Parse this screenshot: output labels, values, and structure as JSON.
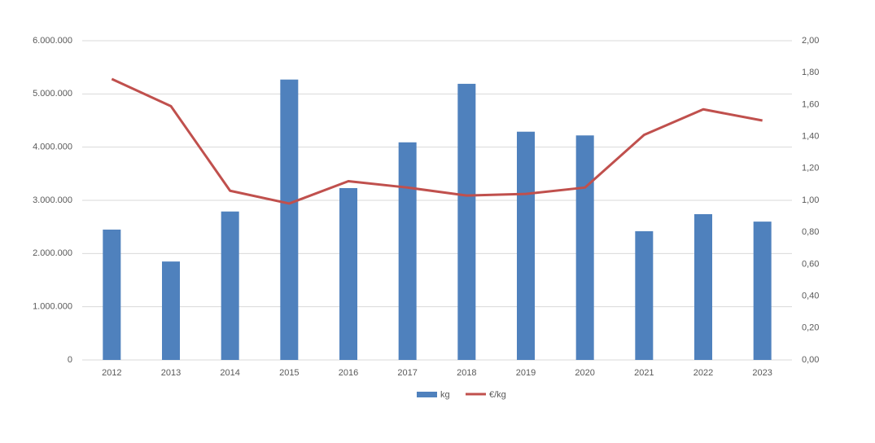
{
  "chart_data": {
    "type": "bar_line",
    "categories": [
      "2012",
      "2013",
      "2014",
      "2015",
      "2016",
      "2017",
      "2018",
      "2019",
      "2020",
      "2021",
      "2022",
      "2023"
    ],
    "series": [
      {
        "name": "kg",
        "type": "bar",
        "color": "#4f81bd",
        "values": [
          2450000,
          1850000,
          2790000,
          5270000,
          3230000,
          4090000,
          5190000,
          4290000,
          4220000,
          2420000,
          2740000,
          2600000
        ]
      },
      {
        "name": "€/kg",
        "type": "line",
        "axis": "y2",
        "color": "#c0504d",
        "values": [
          1.76,
          1.59,
          1.06,
          0.98,
          1.12,
          1.08,
          1.03,
          1.04,
          1.08,
          1.41,
          1.57,
          1.5
        ]
      }
    ],
    "ylim": [
      0,
      6000000
    ],
    "yticks": [
      0,
      {
        "value": 1000000,
        "label": "1.000.000"
      },
      {
        "value": 2000000,
        "label": "2.000.000"
      },
      {
        "value": 3000000,
        "label": "3.000.000"
      },
      {
        "value": 4000000,
        "label": "4.000.000"
      },
      {
        "value": 5000000,
        "label": "5.000.000"
      },
      {
        "value": 6000000,
        "label": "6.000.000"
      }
    ],
    "y2lim": [
      0,
      2
    ],
    "y2ticks": [
      {
        "value": 0,
        "label": "0,00"
      },
      {
        "value": 0.2,
        "label": "0,20"
      },
      {
        "value": 0.4,
        "label": "0,40"
      },
      {
        "value": 0.6,
        "label": "0,60"
      },
      {
        "value": 0.8,
        "label": "0,80"
      },
      {
        "value": 1,
        "label": "1,00"
      },
      {
        "value": 1.2,
        "label": "1,20"
      },
      {
        "value": 1.4,
        "label": "1,40"
      },
      {
        "value": 1.6,
        "label": "1,60"
      },
      {
        "value": 1.8,
        "label": "1,80"
      },
      {
        "value": 2,
        "label": "2,00"
      }
    ],
    "grid": true,
    "legend": "bottom"
  }
}
